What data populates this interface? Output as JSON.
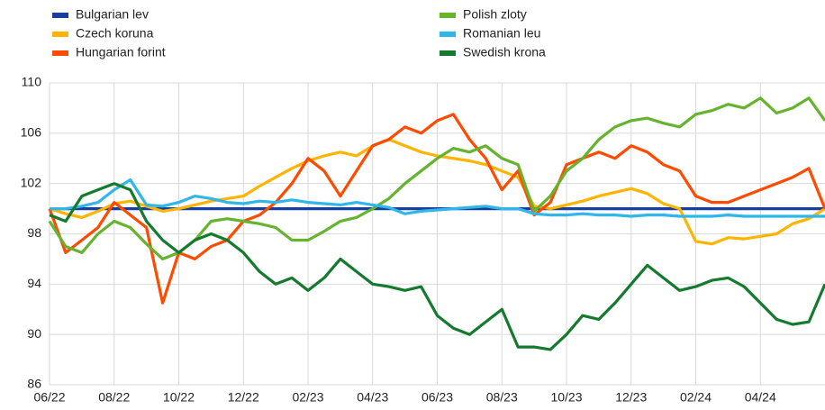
{
  "chart_data": {
    "type": "line",
    "categories": [
      "06/22",
      null,
      null,
      null,
      "08/22",
      null,
      null,
      null,
      "10/22",
      null,
      null,
      null,
      "12/22",
      null,
      null,
      null,
      "02/23",
      null,
      null,
      null,
      "04/23",
      null,
      null,
      null,
      "06/23",
      null,
      null,
      null,
      "08/23",
      null,
      null,
      null,
      "10/23",
      null,
      null,
      null,
      "12/23",
      null,
      null,
      null,
      "02/24",
      null,
      null,
      null,
      "04/24",
      null,
      null,
      null,
      null
    ],
    "ylim": [
      86,
      110
    ],
    "yticks": [
      86,
      90,
      94,
      98,
      102,
      106,
      110
    ],
    "grid": true,
    "series": [
      {
        "name": "Bulgarian lev",
        "color": "#173f9b",
        "values": [
          100,
          100,
          100,
          100,
          100,
          100,
          100,
          100,
          100,
          100,
          100,
          100,
          100,
          100,
          100,
          100,
          100,
          100,
          100,
          100,
          100,
          100,
          100,
          100,
          100,
          100,
          100,
          100,
          100,
          100,
          100,
          100,
          100,
          100,
          100,
          100,
          100,
          100,
          100,
          100,
          100,
          100,
          100,
          100,
          100,
          100,
          100,
          100,
          100
        ]
      },
      {
        "name": "Czech koruna",
        "color": "#ffb400",
        "values": [
          100,
          99.6,
          99.3,
          99.8,
          100.4,
          100.6,
          100.2,
          99.8,
          100,
          100.3,
          100.6,
          100.8,
          101,
          101.8,
          102.5,
          103.2,
          103.8,
          104.2,
          104.5,
          104.2,
          105,
          105.5,
          105,
          104.5,
          104.2,
          104,
          103.8,
          103.5,
          103,
          102.5,
          100.2,
          100,
          100.3,
          100.6,
          101,
          101.3,
          101.6,
          101.2,
          100.4,
          100,
          97.4,
          97.2,
          97.7,
          97.6,
          97.8,
          98,
          98.8,
          99.2,
          100
        ]
      },
      {
        "name": "Hungarian forint",
        "color": "#ff4b00",
        "values": [
          100,
          96.5,
          97.5,
          98.5,
          100.5,
          99.5,
          98.5,
          92.5,
          96.5,
          96,
          97,
          97.5,
          99,
          99.5,
          100.5,
          102,
          104,
          103,
          101,
          103,
          105,
          105.5,
          106.5,
          106,
          107,
          107.5,
          105.5,
          104,
          101.5,
          103,
          99.5,
          100.5,
          103.5,
          104,
          104.5,
          104,
          105,
          104.5,
          103.5,
          103,
          101,
          100.5,
          100.5,
          101,
          101.5,
          102,
          102.5,
          103.2,
          100
        ]
      },
      {
        "name": "Polish zloty",
        "color": "#65b32e",
        "values": [
          99,
          97,
          96.5,
          98,
          99,
          98.5,
          97.2,
          96,
          96.5,
          97.5,
          99,
          99.2,
          99,
          98.8,
          98.5,
          97.5,
          97.5,
          98.2,
          99,
          99.3,
          100,
          100.8,
          102,
          103,
          104,
          104.8,
          104.5,
          105,
          104,
          103.5,
          99.8,
          101,
          103,
          104,
          105.5,
          106.5,
          107,
          107.2,
          106.8,
          106.5,
          107.5,
          107.8,
          108.3,
          108,
          108.8,
          107.6,
          108,
          108.8,
          107
        ]
      },
      {
        "name": "Romanian leu",
        "color": "#30b6e8",
        "values": [
          100,
          100,
          100.2,
          100.5,
          101.5,
          102.3,
          100.3,
          100.2,
          100.5,
          101,
          100.8,
          100.5,
          100.4,
          100.6,
          100.5,
          100.7,
          100.5,
          100.4,
          100.3,
          100.5,
          100.3,
          100.1,
          99.6,
          99.8,
          99.9,
          100,
          100.1,
          100.2,
          100,
          100,
          99.6,
          99.5,
          99.5,
          99.6,
          99.5,
          99.5,
          99.4,
          99.5,
          99.5,
          99.4,
          99.4,
          99.4,
          99.5,
          99.4,
          99.4,
          99.4,
          99.4,
          99.4,
          99.4
        ]
      },
      {
        "name": "Swedish krona",
        "color": "#147a2e",
        "values": [
          99.5,
          99,
          101,
          101.5,
          102,
          101.5,
          99,
          97.5,
          96.5,
          97.5,
          98,
          97.5,
          96.5,
          95,
          94,
          94.5,
          93.5,
          94.5,
          96,
          95,
          94,
          93.8,
          93.5,
          93.8,
          91.5,
          90.5,
          90,
          91,
          92,
          89,
          89,
          88.8,
          90,
          91.5,
          91.2,
          92.5,
          94,
          95.5,
          94.5,
          93.5,
          93.8,
          94.3,
          94.5,
          93.8,
          92.5,
          91.2,
          90.8,
          91,
          94
        ]
      }
    ]
  }
}
